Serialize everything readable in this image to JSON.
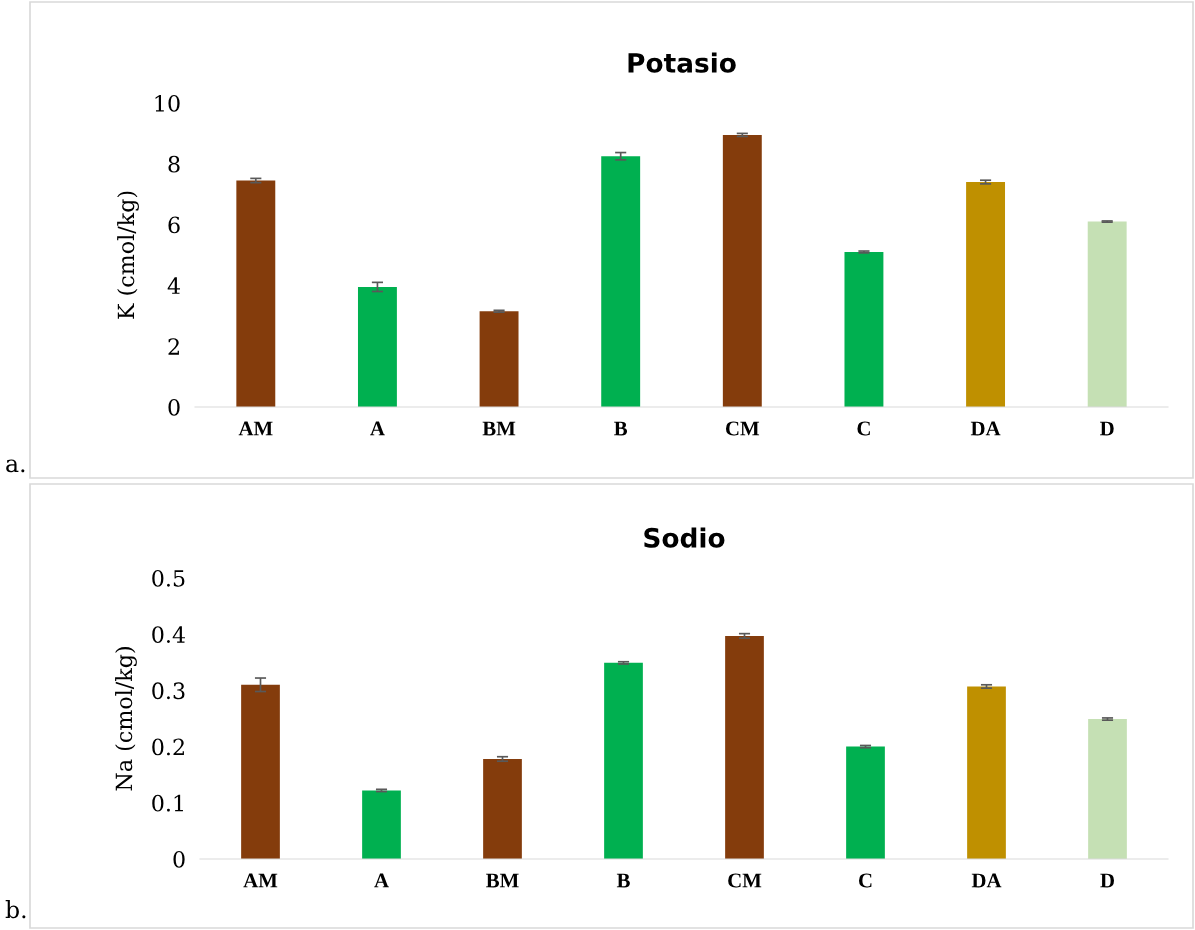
{
  "chart_data": [
    {
      "type": "bar",
      "title": "Potasio",
      "ylabel": "K (cmol/kg)",
      "categories": [
        "AM",
        "A",
        "BM",
        "B",
        "CM",
        "C",
        "DA",
        "D"
      ],
      "values": [
        7.45,
        3.95,
        3.15,
        8.25,
        8.95,
        5.1,
        7.4,
        6.1
      ],
      "errors": [
        0.07,
        0.15,
        0.03,
        0.12,
        0.05,
        0.03,
        0.06,
        0.02
      ],
      "colors": [
        "#843c0c",
        "#00b050",
        "#843c0c",
        "#00b050",
        "#843c0c",
        "#00b050",
        "#bf9000",
        "#c5e0b4"
      ],
      "ylim": [
        0,
        10
      ],
      "yticks": [
        0,
        2,
        4,
        6,
        8,
        10
      ],
      "annotations": [
        "a."
      ]
    },
    {
      "type": "bar",
      "title": "Sodio",
      "ylabel": "Na (cmol/kg)",
      "categories": [
        "AM",
        "A",
        "BM",
        "B",
        "CM",
        "C",
        "DA",
        "D"
      ],
      "values": [
        0.31,
        0.122,
        0.178,
        0.349,
        0.397,
        0.2,
        0.307,
        0.249
      ],
      "errors": [
        0.012,
        0.002,
        0.004,
        0.002,
        0.004,
        0.002,
        0.003,
        0.002
      ],
      "colors": [
        "#843c0c",
        "#00b050",
        "#843c0c",
        "#00b050",
        "#843c0c",
        "#00b050",
        "#bf9000",
        "#c5e0b4"
      ],
      "ylim": [
        0,
        0.5
      ],
      "yticks": [
        0,
        0.1,
        0.2,
        0.3,
        0.4,
        0.5
      ],
      "annotations": [
        "b."
      ]
    }
  ]
}
